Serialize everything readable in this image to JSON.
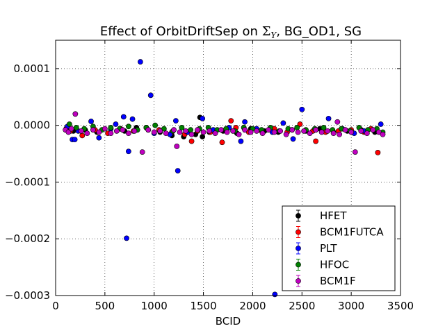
{
  "chart_data": {
    "type": "scatter",
    "title_prefix": "Effect of OrbitDriftSep on ",
    "title_math": "Σ",
    "title_sub": "Y",
    "title_suffix": ", BG_OD1, SG",
    "xlabel": "BCID",
    "ylabel": "",
    "xlim": [
      0,
      3500
    ],
    "ylim": [
      -0.0003,
      0.00015
    ],
    "xticks": [
      0,
      500,
      1000,
      1500,
      2000,
      2500,
      3000,
      3500
    ],
    "xtick_labels": [
      "0",
      "500",
      "1000",
      "1500",
      "2000",
      "2500",
      "3000",
      "3500"
    ],
    "yticks": [
      -0.0003,
      -0.0002,
      -0.0001,
      0.0,
      0.0001
    ],
    "ytick_labels": [
      "−0.0003",
      "−0.0002",
      "−0.0001",
      "0.0000",
      "0.0001"
    ],
    "grid": true,
    "legend_position": "bottom-right",
    "series": [
      {
        "name": "HFET",
        "color": "#000000",
        "x": [
          110,
          180,
          300,
          420,
          560,
          700,
          820,
          940,
          1060,
          1180,
          1300,
          1420,
          1465,
          1490,
          1560,
          1700,
          1840,
          1980,
          2120,
          2260,
          2400,
          2540,
          2680,
          2820,
          2960,
          3100,
          3240
        ],
        "y": [
          -5e-06,
          -1e-05,
          -8e-06,
          -1.2e-05,
          -6e-06,
          -1e-05,
          -4e-06,
          -8e-06,
          -1.2e-05,
          -1.8e-05,
          -2e-05,
          -1.6e-05,
          1.4e-05,
          -2e-05,
          -1.2e-05,
          -1e-05,
          -1.4e-05,
          -6e-06,
          -1e-05,
          -1.2e-05,
          -8e-06,
          -1e-05,
          -6e-06,
          -1.2e-05,
          -1e-05,
          -8e-06,
          -1.2e-05
        ]
      },
      {
        "name": "BCM1FUTCA",
        "color": "#ff0000",
        "x": [
          150,
          270,
          400,
          530,
          660,
          790,
          920,
          1050,
          1180,
          1310,
          1380,
          1440,
          1570,
          1690,
          1780,
          1830,
          1960,
          2090,
          2220,
          2350,
          2480,
          2610,
          2640,
          2740,
          2870,
          3000,
          3130,
          3200,
          3270
        ],
        "y": [
          -1e-05,
          -1.8e-05,
          -8e-06,
          -1.4e-05,
          -6e-06,
          -1e-05,
          -4e-06,
          -8e-06,
          -1.2e-05,
          -1.6e-05,
          -2.8e-05,
          -1e-05,
          -1.2e-05,
          -3e-05,
          8e-06,
          -4e-06,
          -1.2e-05,
          -1e-05,
          -6e-06,
          -1.2e-05,
          2e-06,
          -1e-05,
          -2.8e-05,
          -1.2e-05,
          -1e-05,
          -8e-06,
          -1.2e-05,
          -6e-06,
          -4.8e-05
        ]
      },
      {
        "name": "PLT",
        "color": "#0000ff",
        "x": [
          120,
          170,
          195,
          230,
          360,
          440,
          560,
          610,
          690,
          720,
          740,
          780,
          860,
          965,
          1000,
          1160,
          1220,
          1240,
          1340,
          1490,
          1600,
          1760,
          1880,
          1920,
          2040,
          2200,
          2225,
          2310,
          2410,
          2500,
          2640,
          2770,
          2910,
          3030,
          3130,
          3300
        ],
        "y": [
          -2e-06,
          -2.5e-05,
          -2.5e-05,
          -1e-05,
          7e-06,
          -2.2e-05,
          -6e-06,
          2e-06,
          1.5e-05,
          -0.000199,
          -4.6e-05,
          1.1e-05,
          0.000112,
          5.3e-05,
          -1.4e-05,
          -1.6e-05,
          8e-06,
          -8e-05,
          -1.2e-05,
          1.2e-05,
          -8e-06,
          -4e-06,
          -2.8e-05,
          6e-06,
          -6e-06,
          -1.2e-05,
          -0.000298,
          4e-06,
          -2.4e-05,
          2.8e-05,
          -8e-06,
          1.2e-05,
          -6e-06,
          -1.4e-05,
          -1e-05,
          2e-06
        ]
      },
      {
        "name": "HFOC",
        "color": "#008000",
        "x": [
          140,
          210,
          290,
          380,
          470,
          560,
          650,
          740,
          830,
          920,
          1010,
          1100,
          1190,
          1280,
          1370,
          1460,
          1550,
          1640,
          1730,
          1820,
          1910,
          2000,
          2090,
          2180,
          2270,
          2360,
          2450,
          2540,
          2630,
          2720,
          2810,
          2900,
          2990,
          3080,
          3170,
          3260,
          3320
        ],
        "y": [
          2e-06,
          -4e-06,
          -6e-06,
          -2e-06,
          -8e-06,
          -4e-06,
          -6e-06,
          -2e-06,
          -8e-06,
          -4e-06,
          0.0,
          -6e-06,
          -1e-05,
          -4e-06,
          -8e-06,
          -6e-06,
          -4e-06,
          -8e-06,
          -6e-06,
          -1e-05,
          -4e-06,
          -6e-06,
          -8e-06,
          -4e-06,
          -1e-05,
          -6e-06,
          -4e-06,
          -8e-06,
          -6e-06,
          -4e-06,
          -8e-06,
          -6e-06,
          -1e-05,
          -4e-06,
          -8e-06,
          -6e-06,
          -1.2e-05
        ]
      },
      {
        "name": "BCM1F",
        "color": "#bf00bf",
        "x": [
          100,
          130,
          160,
          200,
          260,
          320,
          380,
          440,
          500,
          560,
          620,
          680,
          740,
          800,
          880,
          940,
          1000,
          1060,
          1120,
          1200,
          1230,
          1260,
          1320,
          1380,
          1440,
          1500,
          1560,
          1620,
          1680,
          1740,
          1800,
          1860,
          1920,
          1980,
          2040,
          2100,
          2160,
          2220,
          2280,
          2340,
          2400,
          2460,
          2520,
          2580,
          2640,
          2700,
          2760,
          2820,
          2860,
          2880,
          2940,
          3000,
          3040,
          3100,
          3160,
          3220,
          3280,
          3320
        ],
        "y": [
          -8e-06,
          -1.2e-05,
          -6e-06,
          2e-05,
          -1e-05,
          -1.4e-05,
          -8e-06,
          -1.2e-05,
          -6e-06,
          -1.4e-05,
          -1e-05,
          -8e-06,
          -1.4e-05,
          -1e-05,
          -4.7e-05,
          -8e-06,
          -1.2e-05,
          -1e-05,
          -1.4e-05,
          -8e-06,
          -3.7e-05,
          -1.2e-05,
          -1e-05,
          -1.6e-05,
          -8e-06,
          -1.2e-05,
          -1e-05,
          -1.4e-05,
          -8e-06,
          -1.2e-05,
          -1e-05,
          -1.6e-05,
          -8e-06,
          -1.2e-05,
          -1e-05,
          -1.4e-05,
          -8e-06,
          -1.2e-05,
          -1e-05,
          -1.6e-05,
          -8e-06,
          -1.2e-05,
          -1e-05,
          -1.4e-05,
          -8e-06,
          -1.2e-05,
          -1e-05,
          -1.4e-05,
          6e-06,
          -1.6e-05,
          -8e-06,
          -1.2e-05,
          -4.7e-05,
          -1e-05,
          -1.4e-05,
          -8e-06,
          -1.2e-05,
          -1.6e-05
        ]
      }
    ]
  }
}
